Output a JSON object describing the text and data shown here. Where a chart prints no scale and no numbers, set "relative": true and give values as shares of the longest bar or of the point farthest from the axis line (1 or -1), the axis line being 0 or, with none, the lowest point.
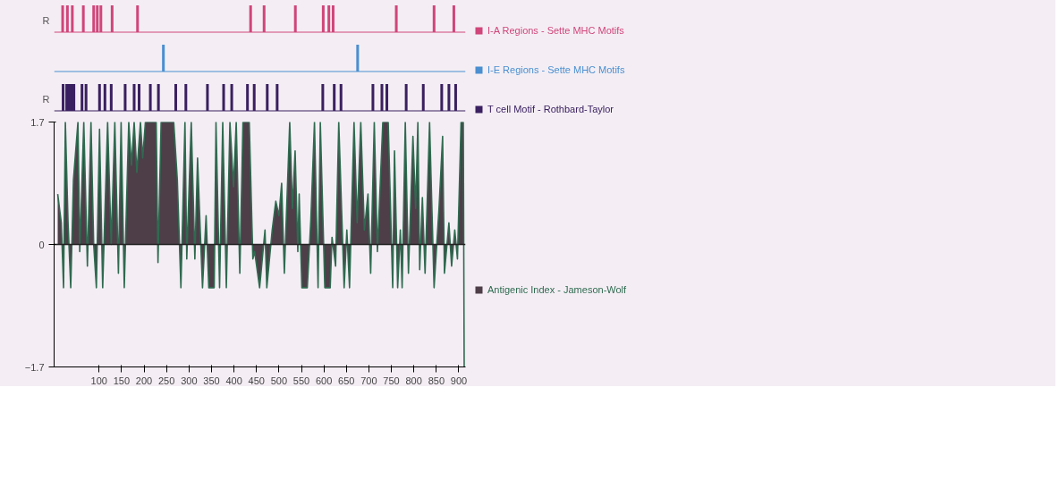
{
  "chart_data": [
    {
      "type": "bar",
      "ylabel": "R",
      "xlim": [
        0,
        915
      ],
      "tick_labels": false,
      "legend": "right",
      "relative": true,
      "x": [
        19,
        29.5,
        40.5,
        65,
        88,
        96,
        104,
        129,
        185.5,
        437,
        467,
        536.5,
        598.5,
        611,
        620.5,
        761,
        845,
        889
      ],
      "series": [
        {
          "name": "I-A Regions - Sette MHC Motifs",
          "color": "#d0457a",
          "values": [
            1,
            1,
            1,
            1,
            1,
            1,
            1,
            1,
            1,
            1,
            1,
            1,
            1,
            1,
            1,
            1,
            1,
            1
          ]
        }
      ]
    },
    {
      "type": "bar",
      "xlim": [
        0,
        915
      ],
      "tick_labels": false,
      "legend": "right",
      "relative": true,
      "x": [
        243,
        675
      ],
      "series": [
        {
          "name": "I-E Regions - Sette MHC Motifs",
          "color": "#4a8fd0",
          "values": [
            1,
            1
          ]
        }
      ]
    },
    {
      "type": "bar",
      "ylabel": "R",
      "xlim": [
        0,
        915
      ],
      "tick_labels": false,
      "legend": "right",
      "relative": true,
      "x": [
        20,
        28,
        32,
        36,
        40,
        44,
        62,
        71,
        101,
        113,
        127,
        158,
        178,
        189,
        214,
        232,
        270.5,
        293,
        341,
        377,
        395,
        430,
        445,
        474,
        496,
        597.5,
        623,
        638,
        709,
        729,
        740,
        783,
        821,
        862,
        878,
        893
      ],
      "series": [
        {
          "name": "T cell Motif - Rothbard-Taylor",
          "color": "#3a2060",
          "values": [
            1,
            1,
            1,
            1,
            1,
            1,
            1,
            1,
            1,
            1,
            1,
            1,
            1,
            1,
            1,
            1,
            1,
            1,
            1,
            1,
            1,
            1,
            1,
            1,
            1,
            1,
            1,
            1,
            1,
            1,
            1,
            1,
            1,
            1,
            1,
            1
          ]
        }
      ]
    },
    {
      "type": "area",
      "xlim": [
        0,
        915
      ],
      "ylim": [
        -1.7,
        1.7
      ],
      "yticks": [
        -1.7,
        0,
        1.7
      ],
      "legend": "right",
      "xticks": [
        100,
        150,
        200,
        250,
        300,
        350,
        400,
        450,
        500,
        550,
        600,
        650,
        700,
        750,
        800,
        850,
        900
      ],
      "x": [
        8,
        16,
        21,
        25,
        31,
        37,
        43,
        53,
        57,
        66,
        74,
        82,
        88,
        94,
        101,
        108,
        119,
        127,
        135,
        143,
        149,
        156,
        166,
        172,
        178,
        184,
        192,
        197,
        203,
        227,
        231,
        238,
        266,
        274,
        282,
        291,
        295,
        305,
        313,
        319,
        325,
        330,
        338,
        344,
        356,
        360,
        368,
        375,
        383,
        391,
        399,
        405,
        413,
        420,
        434,
        442,
        446,
        457,
        469,
        473,
        485,
        493,
        500,
        506,
        512,
        524,
        530,
        536,
        542,
        545,
        551,
        563,
        571,
        579,
        587,
        592,
        602,
        614,
        618,
        626,
        633,
        645,
        651,
        657,
        667,
        674,
        682,
        690,
        698,
        704,
        712,
        719,
        731,
        743,
        753,
        757,
        764,
        770,
        774,
        781,
        788,
        798,
        804,
        809,
        813,
        819,
        825,
        835,
        845,
        856,
        864,
        868,
        878,
        884,
        891,
        897,
        905,
        910,
        912
      ],
      "series": [
        {
          "name": "Antigenic Index - Jameson-Wolf",
          "color": "#2f6a50",
          "values": [
            0.7,
            0.3,
            -0.6,
            1.7,
            0.3,
            -0.6,
            0.9,
            1.7,
            -0.1,
            1.7,
            -0.3,
            1.7,
            0,
            -0.6,
            1.6,
            -0.6,
            1.7,
            0,
            1.7,
            -0.4,
            1.7,
            -0.6,
            1.7,
            1.1,
            1.7,
            1.0,
            1.7,
            1.2,
            1.7,
            1.7,
            -0.25,
            1.7,
            1.7,
            0.9,
            -0.6,
            1.7,
            -0.2,
            1.7,
            -0.2,
            1.2,
            0.2,
            -0.6,
            0.4,
            -0.6,
            -0.6,
            1.7,
            -0.6,
            1.7,
            -0.6,
            1.7,
            0.8,
            1.7,
            -0.4,
            1.7,
            1.7,
            -0.2,
            -0.1,
            -0.6,
            0.2,
            -0.6,
            0.2,
            0.6,
            0.4,
            0.85,
            -0.4,
            1.7,
            0.5,
            1.3,
            -0.1,
            0.7,
            -0.6,
            -0.6,
            0.35,
            1.7,
            -0.6,
            1.7,
            -0.6,
            -0.6,
            0.1,
            -0.3,
            1.7,
            -0.6,
            0.2,
            -0.6,
            1.7,
            0.3,
            1.7,
            0.2,
            0.7,
            -0.4,
            1.7,
            -0.1,
            1.7,
            1.7,
            -0.6,
            1.3,
            -0.6,
            0.2,
            -0.6,
            1.7,
            -0.4,
            1.5,
            0.5,
            1.7,
            -0.35,
            0.65,
            -0.4,
            1.7,
            -0.6,
            0.5,
            1.5,
            -0.4,
            0.3,
            -0.3,
            0.2,
            -0.2,
            1.7,
            1.7,
            -1.7
          ]
        }
      ]
    }
  ]
}
